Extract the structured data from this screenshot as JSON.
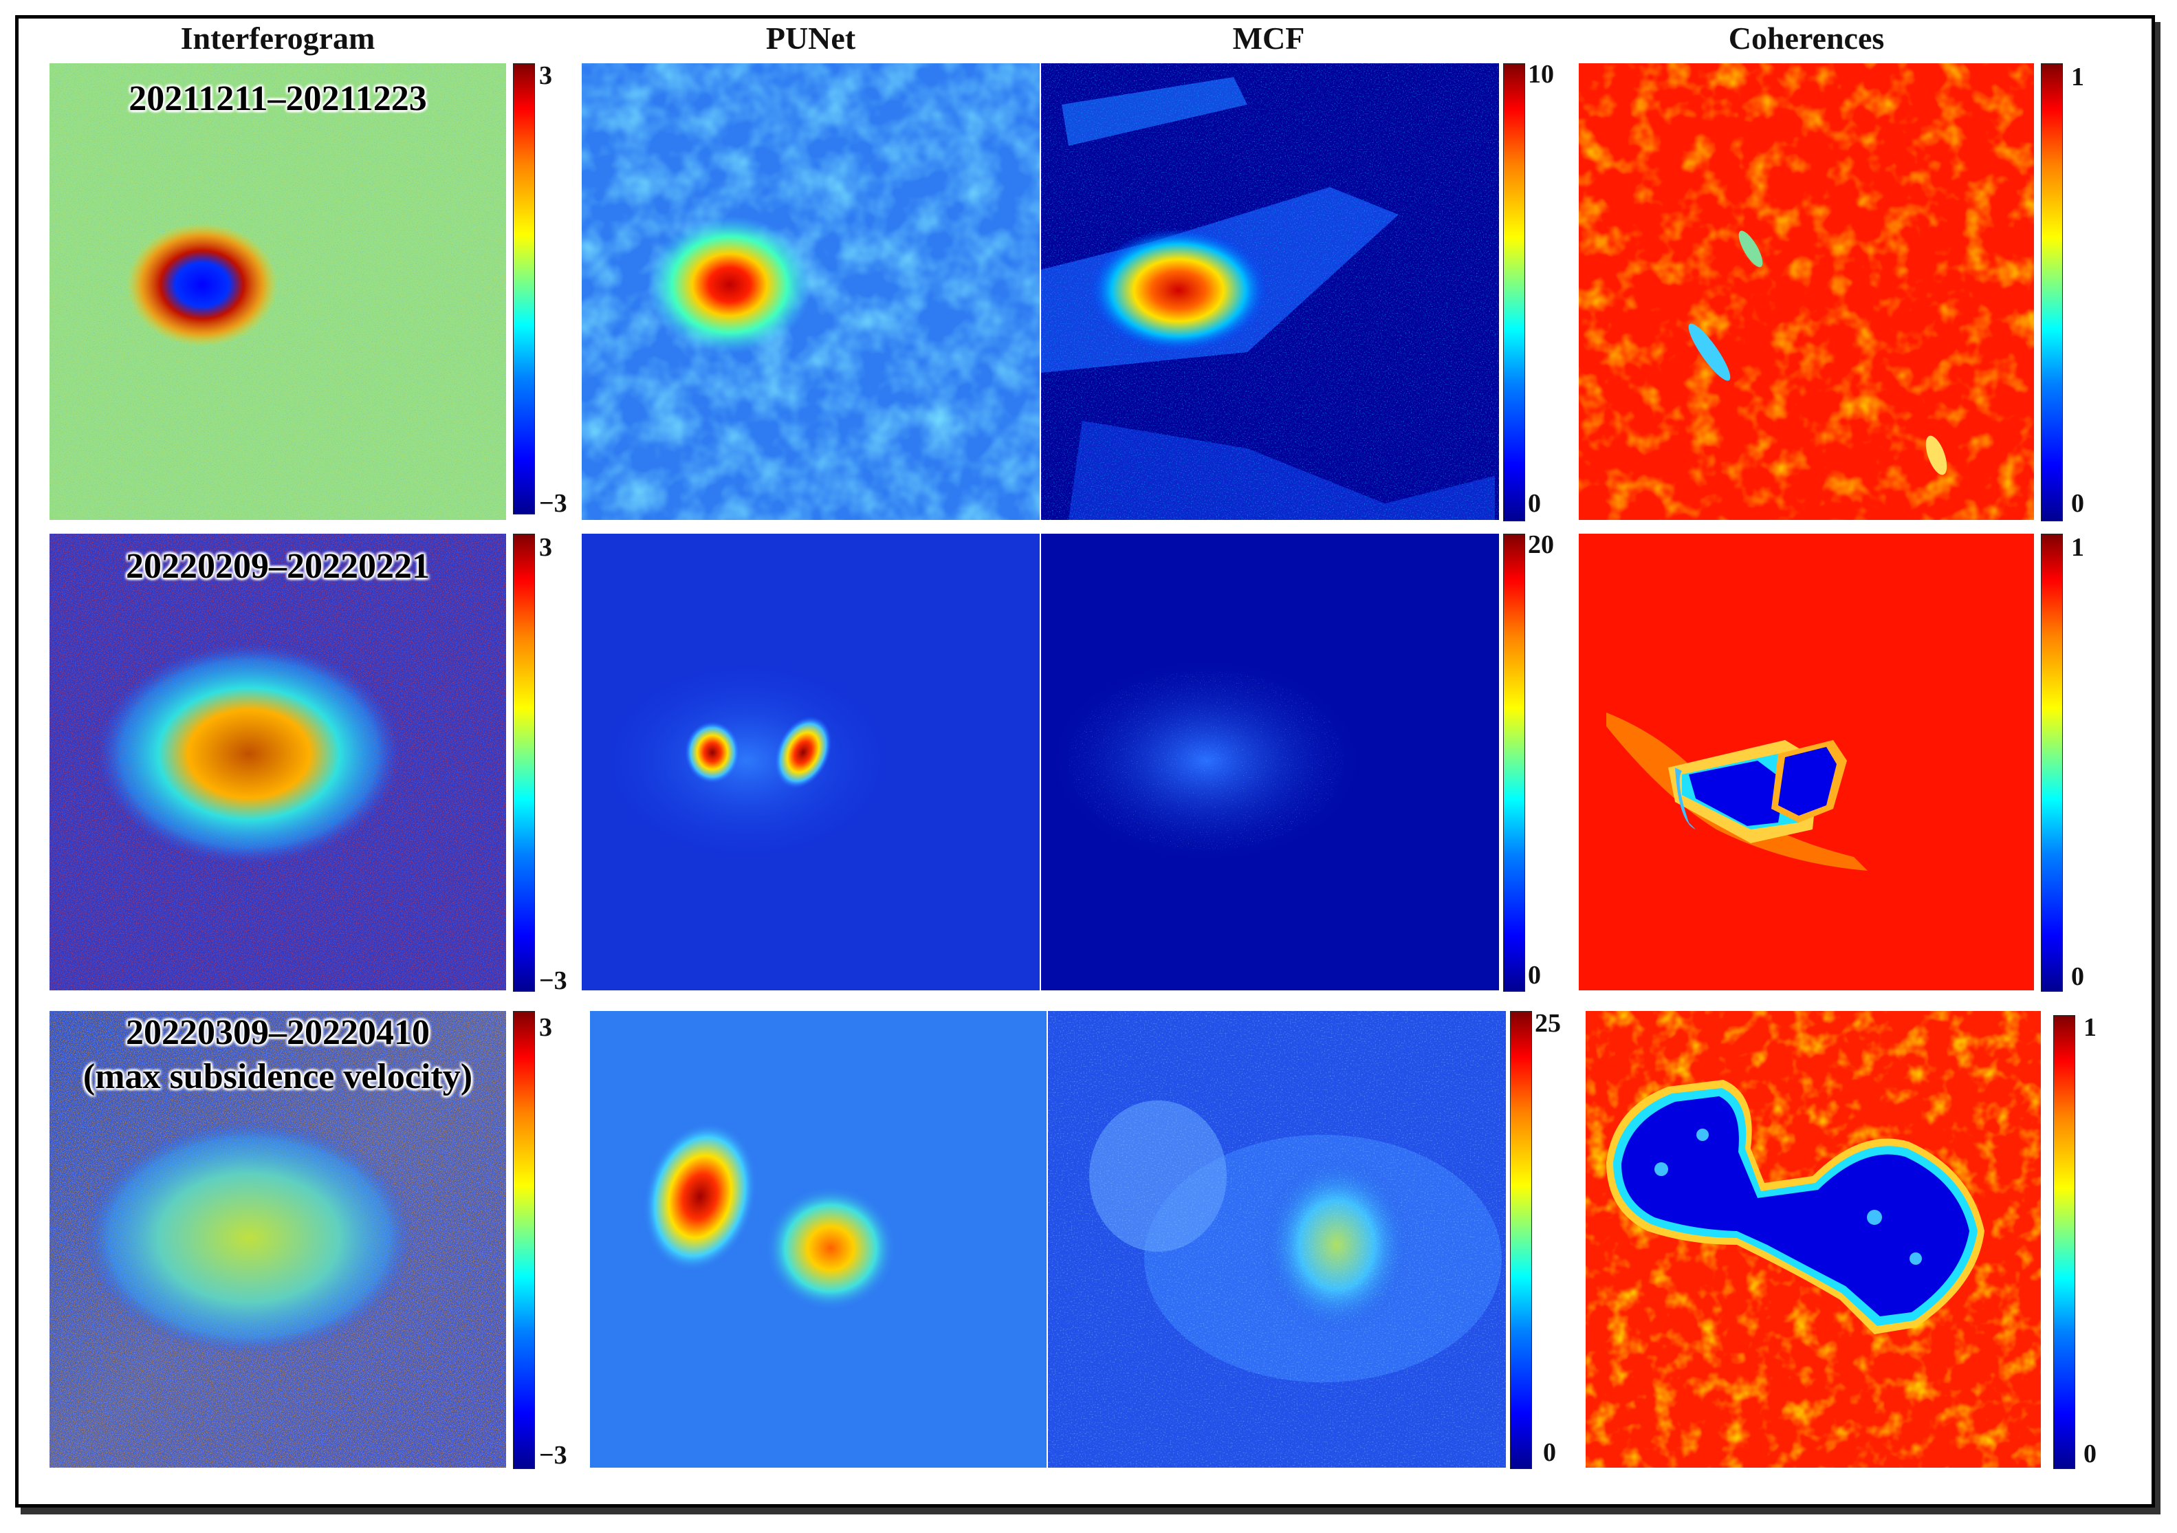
{
  "columns": {
    "interferogram": "Interferogram",
    "punet": "PUNet",
    "mcf": "MCF",
    "coherences": "Coherences"
  },
  "rows": [
    {
      "date_label": "20211211–20211223",
      "date_label_line2": "",
      "interferogram_scale": {
        "max": "3",
        "min": "−3"
      },
      "unwrap_scale": {
        "max": "10",
        "min": "0"
      },
      "coherence_scale": {
        "max": "1",
        "min": "0"
      }
    },
    {
      "date_label": "20220209–20220221",
      "date_label_line2": "",
      "interferogram_scale": {
        "max": "3",
        "min": "−3"
      },
      "unwrap_scale": {
        "max": "20",
        "min": "0"
      },
      "coherence_scale": {
        "max": "1",
        "min": "0"
      }
    },
    {
      "date_label": "20220309–20220410",
      "date_label_line2": "(max subsidence velocity)",
      "interferogram_scale": {
        "max": "3",
        "min": "−3"
      },
      "unwrap_scale": {
        "max": "25",
        "min": "0"
      },
      "coherence_scale": {
        "max": "1",
        "min": "0"
      }
    }
  ],
  "colormap": "jet",
  "colors": {
    "dark_blue": "#00008f",
    "blue": "#0000ff",
    "cyan": "#00ffff",
    "yellow": "#ffff00",
    "red": "#ff0000",
    "dark_red": "#800000"
  }
}
